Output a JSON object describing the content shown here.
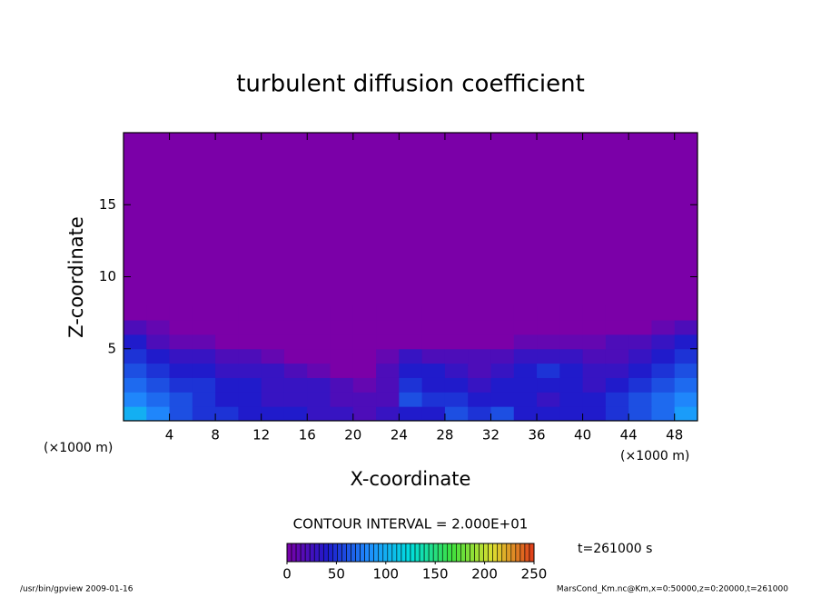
{
  "chart_data": {
    "type": "heatmap",
    "title": "turbulent diffusion coefficient",
    "x_label": "X-coordinate",
    "y_label": "Z-coordinate",
    "x_unit": "(×1000 m)",
    "y_unit": "(×1000 m)",
    "contour_note": "CONTOUR INTERVAL = 2.000E+01",
    "time_label": "t=261000 s",
    "footer_left": "/usr/bin/gpview  2009-01-16",
    "footer_right": "MarsCond_Km.nc@Km,x=0:50000,z=0:20000,t=261000",
    "xlim": [
      0,
      50
    ],
    "ylim": [
      0,
      20
    ],
    "xticks": [
      4,
      8,
      12,
      16,
      20,
      24,
      28,
      32,
      36,
      40,
      44,
      48
    ],
    "yticks": [
      5,
      10,
      15
    ],
    "xbins": [
      0,
      2,
      4,
      6,
      8,
      10,
      12,
      14,
      16,
      18,
      20,
      22,
      24,
      26,
      28,
      30,
      32,
      34,
      36,
      38,
      40,
      42,
      44,
      46,
      48,
      50
    ],
    "ybins": [
      0,
      1,
      2,
      3,
      4,
      5,
      6,
      7,
      8
    ],
    "values": [
      [
        100,
        80,
        60,
        50,
        50,
        40,
        40,
        40,
        30,
        30,
        20,
        30,
        40,
        40,
        60,
        50,
        60,
        40,
        40,
        40,
        40,
        50,
        60,
        70,
        90
      ],
      [
        80,
        70,
        60,
        50,
        40,
        40,
        30,
        30,
        30,
        20,
        20,
        20,
        60,
        50,
        50,
        40,
        40,
        40,
        30,
        40,
        40,
        50,
        60,
        70,
        80
      ],
      [
        70,
        60,
        50,
        50,
        40,
        40,
        30,
        30,
        30,
        20,
        10,
        20,
        50,
        40,
        40,
        30,
        40,
        40,
        40,
        40,
        30,
        40,
        50,
        60,
        70
      ],
      [
        60,
        50,
        40,
        40,
        30,
        30,
        30,
        20,
        10,
        0,
        0,
        20,
        40,
        40,
        30,
        20,
        30,
        40,
        50,
        40,
        30,
        30,
        40,
        50,
        60
      ],
      [
        50,
        40,
        30,
        30,
        20,
        20,
        10,
        0,
        0,
        0,
        0,
        10,
        30,
        20,
        20,
        20,
        20,
        30,
        30,
        30,
        20,
        20,
        30,
        40,
        50
      ],
      [
        40,
        20,
        10,
        10,
        0,
        0,
        0,
        0,
        0,
        0,
        0,
        0,
        0,
        0,
        0,
        0,
        0,
        10,
        10,
        10,
        10,
        20,
        20,
        30,
        40
      ],
      [
        20,
        10,
        0,
        0,
        0,
        0,
        0,
        0,
        0,
        0,
        0,
        0,
        0,
        0,
        0,
        0,
        0,
        0,
        0,
        0,
        0,
        0,
        0,
        10,
        20
      ],
      [
        0,
        0,
        0,
        0,
        0,
        0,
        0,
        0,
        0,
        0,
        0,
        0,
        0,
        0,
        0,
        0,
        0,
        0,
        0,
        0,
        0,
        0,
        0,
        0,
        0
      ]
    ],
    "clim": [
      0,
      250
    ],
    "cticks": [
      0,
      50,
      100,
      150,
      200,
      250
    ],
    "colors": [
      "#7b00a8",
      "#1c1ccc",
      "#1f8fff",
      "#00dede",
      "#3ee03e",
      "#dede30",
      "#e03a1a"
    ]
  }
}
